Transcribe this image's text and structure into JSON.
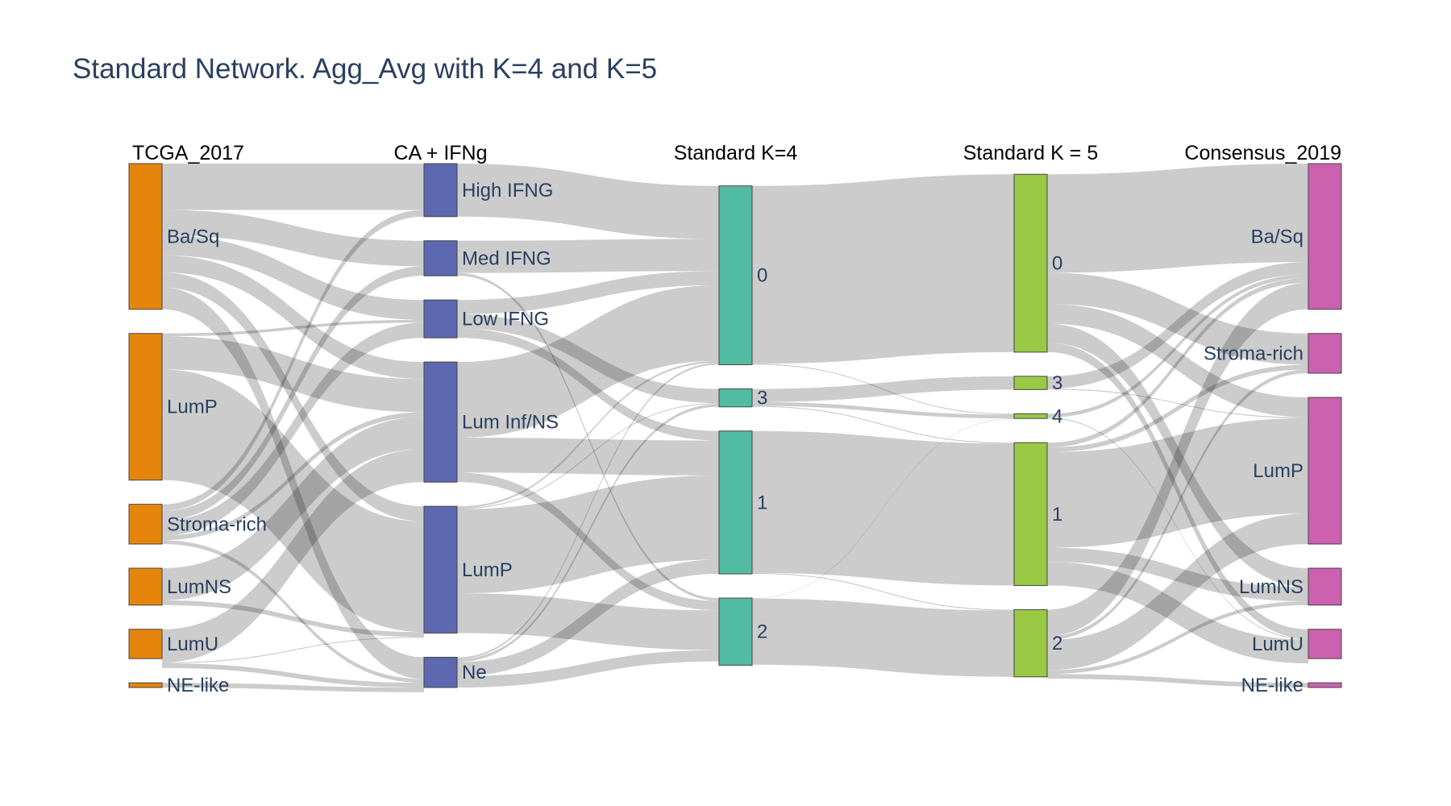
{
  "title": "Standard Network. Agg_Avg with K=4 and K=5",
  "chart_data": {
    "type": "sankey",
    "title": "Standard Network. Agg_Avg with K=4 and K=5",
    "link_color": "rgba(0,0,0,0.2)",
    "columns": [
      {
        "header": "TCGA_2017",
        "color": "#e6850b",
        "label_side": "right",
        "nodes": [
          {
            "id": "t_basq",
            "label": "Ba/Sq",
            "value": 154
          },
          {
            "id": "t_lump",
            "label": "LumP",
            "value": 155
          },
          {
            "id": "t_stroma",
            "label": "Stroma-rich",
            "value": 42
          },
          {
            "id": "t_lumns",
            "label": "LumNS",
            "value": 39
          },
          {
            "id": "t_lumu",
            "label": "LumU",
            "value": 31
          },
          {
            "id": "t_ne",
            "label": "NE-like",
            "value": 5
          }
        ]
      },
      {
        "header": "CA + IFNg",
        "color": "#5c68b0",
        "label_side": "right",
        "nodes": [
          {
            "id": "c_high",
            "label": "High IFNG",
            "value": 56
          },
          {
            "id": "c_med",
            "label": "Med IFNG",
            "value": 37
          },
          {
            "id": "c_low",
            "label": "Low IFNG",
            "value": 40
          },
          {
            "id": "c_luminf",
            "label": "Lum Inf/NS",
            "value": 127
          },
          {
            "id": "c_lump",
            "label": "LumP",
            "value": 134
          },
          {
            "id": "c_ne",
            "label": "Ne",
            "value": 32
          }
        ]
      },
      {
        "header": "Standard K=4",
        "color": "#52bca3",
        "label_side": "right",
        "nodes": [
          {
            "id": "k4_0",
            "label": "0",
            "value": 189
          },
          {
            "id": "k4_3",
            "label": "3",
            "value": 19
          },
          {
            "id": "k4_1",
            "label": "1",
            "value": 151
          },
          {
            "id": "k4_2",
            "label": "2",
            "value": 71
          }
        ]
      },
      {
        "header": "Standard K = 5",
        "color": "#99c945",
        "label_side": "right",
        "nodes": [
          {
            "id": "k5_0",
            "label": "0",
            "value": 188
          },
          {
            "id": "k5_3",
            "label": "3",
            "value": 14
          },
          {
            "id": "k5_4",
            "label": "4",
            "value": 5
          },
          {
            "id": "k5_1",
            "label": "1",
            "value": 151
          },
          {
            "id": "k5_2",
            "label": "2",
            "value": 71
          }
        ]
      },
      {
        "header": "Consensus_2019",
        "color": "#cc61b0",
        "label_side": "left",
        "nodes": [
          {
            "id": "s_basq",
            "label": "Ba/Sq",
            "value": 154
          },
          {
            "id": "s_stroma",
            "label": "Stroma-rich",
            "value": 42
          },
          {
            "id": "s_lump",
            "label": "LumP",
            "value": 155
          },
          {
            "id": "s_lumns",
            "label": "LumNS",
            "value": 39
          },
          {
            "id": "s_lumu",
            "label": "LumU",
            "value": 31
          },
          {
            "id": "s_ne",
            "label": "NE-like",
            "value": 5
          }
        ]
      }
    ],
    "links": [
      {
        "source": "t_basq",
        "target": "c_high",
        "value": 49
      },
      {
        "source": "t_basq",
        "target": "c_med",
        "value": 27
      },
      {
        "source": "t_basq",
        "target": "c_low",
        "value": 21
      },
      {
        "source": "t_basq",
        "target": "c_luminf",
        "value": 18
      },
      {
        "source": "t_basq",
        "target": "c_lump",
        "value": 16
      },
      {
        "source": "t_basq",
        "target": "c_ne",
        "value": 23
      },
      {
        "source": "t_lump",
        "target": "c_low",
        "value": 3
      },
      {
        "source": "t_lump",
        "target": "c_luminf",
        "value": 35
      },
      {
        "source": "t_lump",
        "target": "c_lump",
        "value": 117
      },
      {
        "source": "t_stroma",
        "target": "c_high",
        "value": 7
      },
      {
        "source": "t_stroma",
        "target": "c_med",
        "value": 10
      },
      {
        "source": "t_stroma",
        "target": "c_low",
        "value": 16
      },
      {
        "source": "t_stroma",
        "target": "c_luminf",
        "value": 5
      },
      {
        "source": "t_stroma",
        "target": "c_ne",
        "value": 4
      },
      {
        "source": "t_lumns",
        "target": "c_luminf",
        "value": 34
      },
      {
        "source": "t_lumns",
        "target": "c_lump",
        "value": 5
      },
      {
        "source": "t_lumu",
        "target": "c_luminf",
        "value": 35
      },
      {
        "source": "t_lumu",
        "target": "c_lump",
        "value": 1
      },
      {
        "source": "t_lumu",
        "target": "c_ne",
        "value": 5
      },
      {
        "source": "t_ne",
        "target": "c_ne",
        "value": 5
      },
      {
        "source": "c_high",
        "target": "k4_0",
        "value": 56
      },
      {
        "source": "c_med",
        "target": "k4_0",
        "value": 34
      },
      {
        "source": "c_med",
        "target": "k4_2",
        "value": 3
      },
      {
        "source": "c_low",
        "target": "k4_0",
        "value": 15
      },
      {
        "source": "c_low",
        "target": "k4_3",
        "value": 15
      },
      {
        "source": "c_low",
        "target": "k4_1",
        "value": 10
      },
      {
        "source": "c_luminf",
        "target": "k4_0",
        "value": 80
      },
      {
        "source": "c_luminf",
        "target": "k4_1",
        "value": 37
      },
      {
        "source": "c_luminf",
        "target": "k4_2",
        "value": 10
      },
      {
        "source": "c_lump",
        "target": "k4_0",
        "value": 2
      },
      {
        "source": "c_lump",
        "target": "k4_3",
        "value": 1
      },
      {
        "source": "c_lump",
        "target": "k4_1",
        "value": 89
      },
      {
        "source": "c_lump",
        "target": "k4_2",
        "value": 42
      },
      {
        "source": "c_ne",
        "target": "k4_0",
        "value": 2
      },
      {
        "source": "c_ne",
        "target": "k4_3",
        "value": 3
      },
      {
        "source": "c_ne",
        "target": "k4_1",
        "value": 15
      },
      {
        "source": "c_ne",
        "target": "k4_2",
        "value": 12
      },
      {
        "source": "k4_0",
        "target": "k5_0",
        "value": 188
      },
      {
        "source": "k4_0",
        "target": "k5_4",
        "value": 1
      },
      {
        "source": "k4_3",
        "target": "k5_3",
        "value": 14
      },
      {
        "source": "k4_3",
        "target": "k5_4",
        "value": 4
      },
      {
        "source": "k4_3",
        "target": "k5_1",
        "value": 1
      },
      {
        "source": "k4_1",
        "target": "k5_1",
        "value": 150
      },
      {
        "source": "k4_1",
        "target": "k5_2",
        "value": 1
      },
      {
        "source": "k4_2",
        "target": "k5_2",
        "value": 70
      },
      {
        "source": "k4_2",
        "target": "k5_4",
        "value": 0.5
      },
      {
        "source": "k5_0",
        "target": "s_basq",
        "value": 104
      },
      {
        "source": "k5_0",
        "target": "s_stroma",
        "value": 33
      },
      {
        "source": "k5_0",
        "target": "s_lump",
        "value": 21
      },
      {
        "source": "k5_0",
        "target": "s_lumns",
        "value": 20
      },
      {
        "source": "k5_0",
        "target": "s_lumu",
        "value": 10
      },
      {
        "source": "k5_3",
        "target": "s_basq",
        "value": 13
      },
      {
        "source": "k5_3",
        "target": "s_lump",
        "value": 1
      },
      {
        "source": "k5_4",
        "target": "s_basq",
        "value": 4
      },
      {
        "source": "k5_4",
        "target": "s_lumu",
        "value": 1
      },
      {
        "source": "k5_1",
        "target": "s_basq",
        "value": 5
      },
      {
        "source": "k5_1",
        "target": "s_stroma",
        "value": 5
      },
      {
        "source": "k5_1",
        "target": "s_lump",
        "value": 101
      },
      {
        "source": "k5_1",
        "target": "s_lumns",
        "value": 15
      },
      {
        "source": "k5_1",
        "target": "s_lumu",
        "value": 25
      },
      {
        "source": "k5_2",
        "target": "s_basq",
        "value": 28
      },
      {
        "source": "k5_2",
        "target": "s_stroma",
        "value": 4
      },
      {
        "source": "k5_2",
        "target": "s_lump",
        "value": 32
      },
      {
        "source": "k5_2",
        "target": "s_lumns",
        "value": 4
      },
      {
        "source": "k5_2",
        "target": "s_ne",
        "value": 5
      }
    ]
  }
}
